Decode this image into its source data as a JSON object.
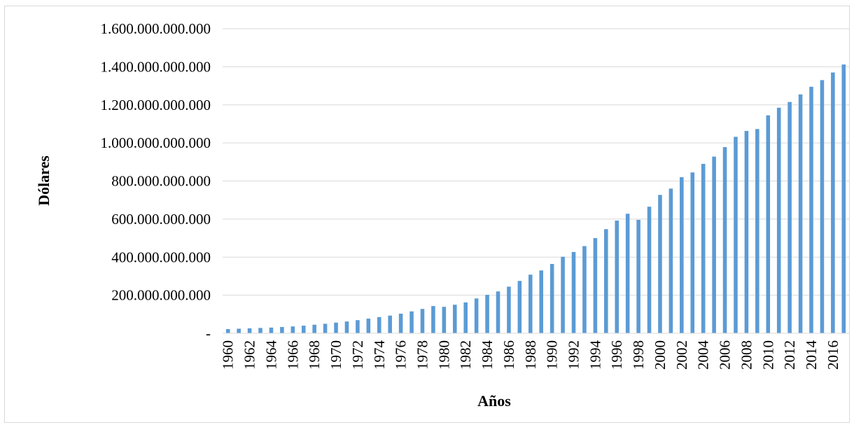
{
  "chart_data": {
    "type": "bar",
    "title": "",
    "xlabel": "Años",
    "ylabel": "Dólares",
    "ylim": [
      0,
      1600000000000
    ],
    "yticks": [
      {
        "value": 0,
        "label": "-"
      },
      {
        "value": 200000000000,
        "label": "200.000.000.000"
      },
      {
        "value": 400000000000,
        "label": "400.000.000.000"
      },
      {
        "value": 600000000000,
        "label": "600.000.000.000"
      },
      {
        "value": 800000000000,
        "label": "800.000.000.000"
      },
      {
        "value": 1000000000000,
        "label": "1.000.000.000.000"
      },
      {
        "value": 1200000000000,
        "label": "1.200.000.000.000"
      },
      {
        "value": 1400000000000,
        "label": "1.400.000.000.000"
      },
      {
        "value": 1600000000000,
        "label": "1.600.000.000.000"
      }
    ],
    "grid": true,
    "legend": "none",
    "bar_color": "#5b9bd5",
    "categories": [
      "1960",
      "1961",
      "1962",
      "1963",
      "1964",
      "1965",
      "1966",
      "1967",
      "1968",
      "1969",
      "1970",
      "1971",
      "1972",
      "1973",
      "1974",
      "1975",
      "1976",
      "1977",
      "1978",
      "1979",
      "1980",
      "1981",
      "1982",
      "1983",
      "1984",
      "1985",
      "1986",
      "1987",
      "1988",
      "1989",
      "1990",
      "1991",
      "1992",
      "1993",
      "1994",
      "1995",
      "1996",
      "1997",
      "1998",
      "1999",
      "2000",
      "2001",
      "2002",
      "2003",
      "2004",
      "2005",
      "2006",
      "2007",
      "2008",
      "2009",
      "2010",
      "2011",
      "2012",
      "2013",
      "2014",
      "2015",
      "2016",
      "2017"
    ],
    "xtick_labels": [
      "1960",
      "1962",
      "1964",
      "1966",
      "1968",
      "1970",
      "1972",
      "1974",
      "1976",
      "1978",
      "1980",
      "1982",
      "1984",
      "1986",
      "1988",
      "1990",
      "1992",
      "1994",
      "1996",
      "1998",
      "2000",
      "2002",
      "2004",
      "2006",
      "2008",
      "2010",
      "2012",
      "2014",
      "2016"
    ],
    "values": [
      22000000000,
      24000000000,
      26000000000,
      28000000000,
      30000000000,
      33000000000,
      36000000000,
      40000000000,
      45000000000,
      50000000000,
      56000000000,
      62000000000,
      69000000000,
      77000000000,
      85000000000,
      93000000000,
      103000000000,
      115000000000,
      128000000000,
      143000000000,
      139000000000,
      150000000000,
      162000000000,
      183000000000,
      202000000000,
      220000000000,
      245000000000,
      275000000000,
      308000000000,
      330000000000,
      364000000000,
      402000000000,
      427000000000,
      458000000000,
      500000000000,
      547000000000,
      592000000000,
      628000000000,
      596000000000,
      665000000000,
      727000000000,
      760000000000,
      820000000000,
      845000000000,
      890000000000,
      928000000000,
      978000000000,
      1032000000000,
      1063000000000,
      1073000000000,
      1145000000000,
      1185000000000,
      1215000000000,
      1255000000000,
      1295000000000,
      1330000000000,
      1370000000000,
      1412000000000
    ]
  }
}
